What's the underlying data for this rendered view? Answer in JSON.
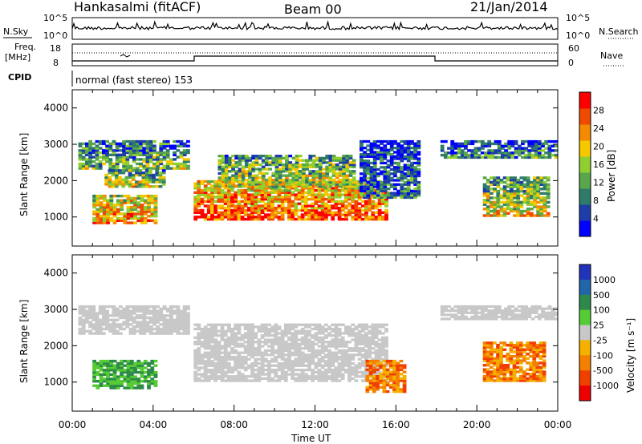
{
  "header": {
    "title": "Hankasalmi (fitACF)",
    "beam": "Beam 00",
    "date": "21/Jan/2014"
  },
  "noise_panel": {
    "left_label": "N.Sky",
    "right_label": "N.Search",
    "tick_top": "10^5",
    "tick_bottom": "10^0"
  },
  "freq_panel": {
    "left_label_1": "Freq.",
    "left_label_2": "[MHz]",
    "left_tick_top": "18",
    "left_tick_bottom": "8",
    "right_label": "Nave",
    "right_tick_top": "60",
    "right_tick_bottom": "0"
  },
  "cpid_panel": {
    "label": "CPID",
    "mode_text": "normal (fast stereo) 153"
  },
  "x_axis": {
    "label": "Time UT",
    "ticks": [
      "00:00",
      "04:00",
      "08:00",
      "12:00",
      "16:00",
      "20:00",
      "00:00"
    ],
    "range_hours": [
      0,
      24
    ]
  },
  "chart_data": [
    {
      "type": "heatmap",
      "title": "",
      "xlabel": "Time UT",
      "ylabel": "Slant Range [km]",
      "ylim": [
        200,
        4500
      ],
      "y_ticks": [
        "1000",
        "2000",
        "3000",
        "4000"
      ],
      "colorbar": {
        "label": "Power [dB]",
        "ticks": [
          "4",
          "8",
          "12",
          "16",
          "20",
          "24",
          "28"
        ],
        "range": [
          0,
          30
        ],
        "colors": [
          "#0000ff",
          "#1e3da8",
          "#2f7b6a",
          "#5aa64a",
          "#8fcf30",
          "#f5c800",
          "#f58a00",
          "#f04a00",
          "#ff0000"
        ]
      },
      "echo_regions": [
        {
          "t0": 0.3,
          "t1": 5.8,
          "r0": 2300,
          "r1": 3100,
          "level": 0.45
        },
        {
          "t0": 1.0,
          "t1": 4.2,
          "r0": 800,
          "r1": 1600,
          "level": 0.75
        },
        {
          "t0": 1.6,
          "t1": 4.6,
          "r0": 1800,
          "r1": 2300,
          "level": 0.55
        },
        {
          "t0": 6.0,
          "t1": 15.6,
          "r0": 900,
          "r1": 2000,
          "level": 0.85
        },
        {
          "t0": 7.2,
          "t1": 14.0,
          "r0": 1800,
          "r1": 2700,
          "level": 0.55
        },
        {
          "t0": 14.2,
          "t1": 17.2,
          "r0": 1500,
          "r1": 3100,
          "level": 0.3
        },
        {
          "t0": 20.3,
          "t1": 23.6,
          "r0": 1000,
          "r1": 2100,
          "level": 0.6
        },
        {
          "t0": 18.2,
          "t1": 24.0,
          "r0": 2600,
          "r1": 3100,
          "level": 0.35
        }
      ]
    },
    {
      "type": "heatmap",
      "title": "",
      "xlabel": "Time UT",
      "ylabel": "Slant Range [km]",
      "ylim": [
        200,
        4500
      ],
      "y_ticks": [
        "1000",
        "2000",
        "3000",
        "4000"
      ],
      "colorbar": {
        "label": "Velocity [m s⁻¹]",
        "ticks": [
          "1000",
          "500",
          "100",
          "25",
          "-25",
          "-100",
          "-500",
          "-1000"
        ],
        "colors": [
          "#2233bb",
          "#2266aa",
          "#2e8a4a",
          "#55cc33",
          "#c8c8c8",
          "#f5b000",
          "#f58000",
          "#f04000",
          "#ee0000"
        ]
      },
      "echo_regions": [
        {
          "t0": 0.3,
          "t1": 5.8,
          "r0": 2300,
          "r1": 3100,
          "class": "ground"
        },
        {
          "t0": 1.0,
          "t1": 4.2,
          "r0": 800,
          "r1": 1600,
          "class": "positive"
        },
        {
          "t0": 6.0,
          "t1": 15.6,
          "r0": 1000,
          "r1": 2600,
          "class": "ground"
        },
        {
          "t0": 14.5,
          "t1": 16.5,
          "r0": 700,
          "r1": 1600,
          "class": "negative"
        },
        {
          "t0": 20.3,
          "t1": 23.4,
          "r0": 1000,
          "r1": 2100,
          "class": "negative"
        },
        {
          "t0": 18.2,
          "t1": 24.0,
          "r0": 2700,
          "r1": 3100,
          "class": "ground"
        }
      ]
    }
  ]
}
